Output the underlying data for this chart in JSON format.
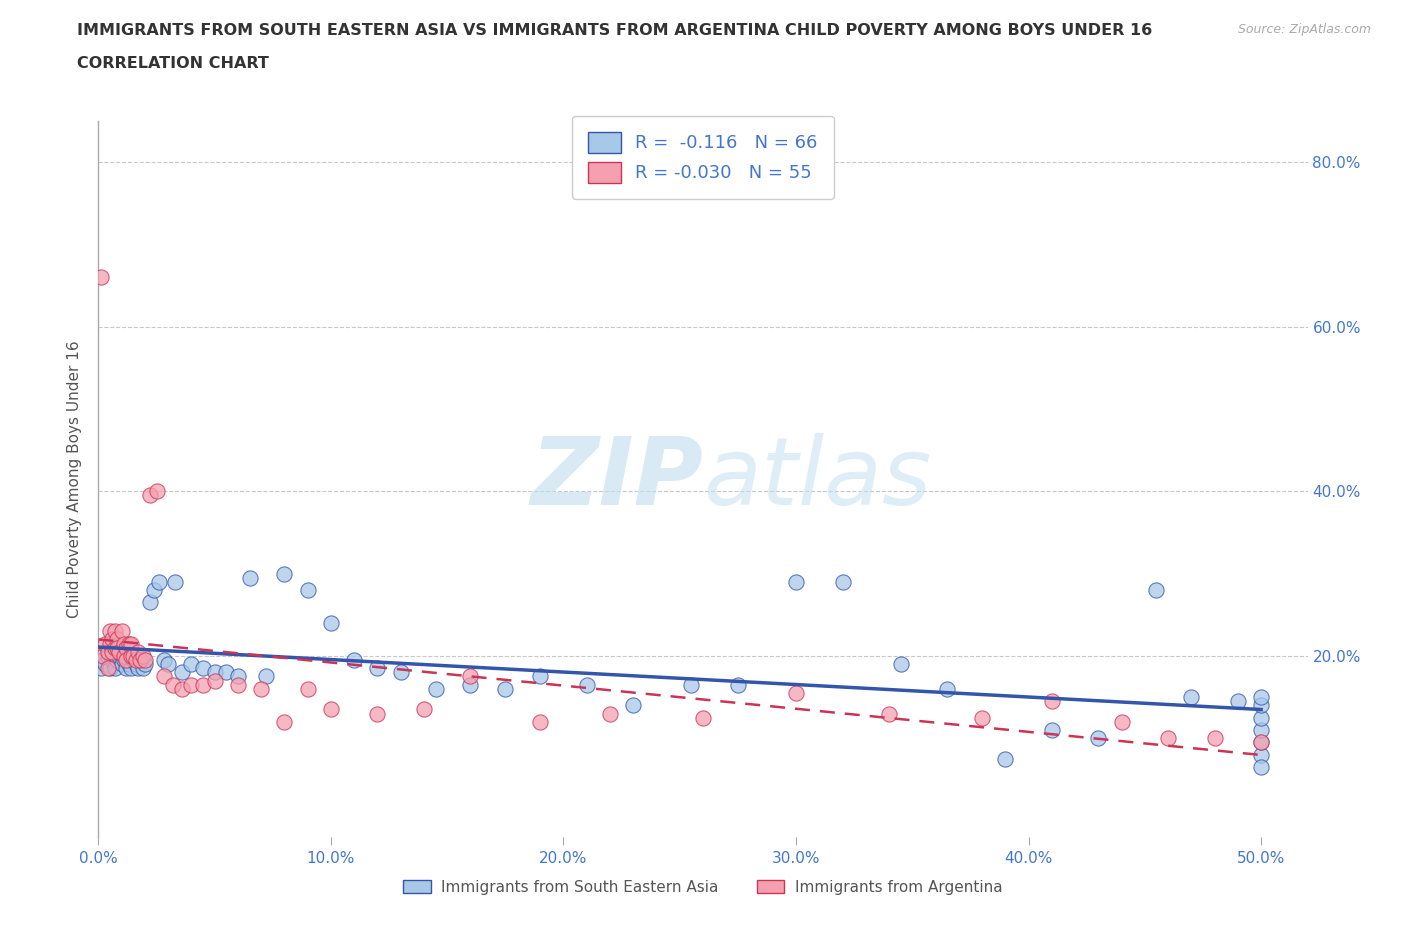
{
  "title_line1": "IMMIGRANTS FROM SOUTH EASTERN ASIA VS IMMIGRANTS FROM ARGENTINA CHILD POVERTY AMONG BOYS UNDER 16",
  "title_line2": "CORRELATION CHART",
  "source": "Source: ZipAtlas.com",
  "ylabel": "Child Poverty Among Boys Under 16",
  "legend_label1": "Immigrants from South Eastern Asia",
  "legend_label2": "Immigrants from Argentina",
  "R1": -0.116,
  "N1": 66,
  "R2": -0.03,
  "N2": 55,
  "color1": "#a8c8e8",
  "color2": "#f4a0b0",
  "line_color1": "#3355aa",
  "line_color2": "#cc3355",
  "bg_color": "#ffffff",
  "grid_color": "#c8c8c8",
  "axis_label_color": "#4477cc",
  "xlim": [
    0.0,
    0.52
  ],
  "ylim": [
    -0.02,
    0.85
  ],
  "xticks": [
    0.0,
    0.1,
    0.2,
    0.3,
    0.4,
    0.5
  ],
  "yticks": [
    0.0,
    0.2,
    0.4,
    0.6,
    0.8
  ],
  "xtick_labels": [
    "0.0%",
    "10.0%",
    "20.0%",
    "30.0%",
    "40.0%",
    "50.0%"
  ],
  "ytick_labels_right": [
    "",
    "20.0%",
    "40.0%",
    "60.0%",
    "80.0%"
  ],
  "scatter1_x": [
    0.001,
    0.001,
    0.002,
    0.003,
    0.004,
    0.005,
    0.006,
    0.007,
    0.008,
    0.009,
    0.01,
    0.011,
    0.012,
    0.013,
    0.014,
    0.015,
    0.016,
    0.017,
    0.018,
    0.019,
    0.02,
    0.022,
    0.024,
    0.026,
    0.028,
    0.03,
    0.033,
    0.036,
    0.04,
    0.045,
    0.05,
    0.055,
    0.06,
    0.065,
    0.072,
    0.08,
    0.09,
    0.1,
    0.11,
    0.12,
    0.13,
    0.145,
    0.16,
    0.175,
    0.19,
    0.21,
    0.23,
    0.255,
    0.275,
    0.3,
    0.32,
    0.345,
    0.365,
    0.39,
    0.41,
    0.43,
    0.455,
    0.47,
    0.49,
    0.5,
    0.5,
    0.5,
    0.5,
    0.5,
    0.5,
    0.5
  ],
  "scatter1_y": [
    0.195,
    0.185,
    0.195,
    0.19,
    0.2,
    0.185,
    0.195,
    0.185,
    0.195,
    0.2,
    0.19,
    0.195,
    0.185,
    0.19,
    0.185,
    0.195,
    0.19,
    0.185,
    0.195,
    0.185,
    0.19,
    0.265,
    0.28,
    0.29,
    0.195,
    0.19,
    0.29,
    0.18,
    0.19,
    0.185,
    0.18,
    0.18,
    0.175,
    0.295,
    0.175,
    0.3,
    0.28,
    0.24,
    0.195,
    0.185,
    0.18,
    0.16,
    0.165,
    0.16,
    0.175,
    0.165,
    0.14,
    0.165,
    0.165,
    0.29,
    0.29,
    0.19,
    0.16,
    0.075,
    0.11,
    0.1,
    0.28,
    0.15,
    0.145,
    0.08,
    0.095,
    0.11,
    0.125,
    0.14,
    0.15,
    0.065
  ],
  "scatter2_x": [
    0.001,
    0.002,
    0.003,
    0.004,
    0.004,
    0.005,
    0.005,
    0.006,
    0.006,
    0.007,
    0.007,
    0.008,
    0.008,
    0.009,
    0.01,
    0.011,
    0.011,
    0.012,
    0.012,
    0.013,
    0.014,
    0.014,
    0.015,
    0.016,
    0.017,
    0.018,
    0.019,
    0.02,
    0.022,
    0.025,
    0.028,
    0.032,
    0.036,
    0.04,
    0.045,
    0.05,
    0.06,
    0.07,
    0.08,
    0.09,
    0.1,
    0.12,
    0.14,
    0.16,
    0.19,
    0.22,
    0.26,
    0.3,
    0.34,
    0.38,
    0.41,
    0.44,
    0.46,
    0.48,
    0.5
  ],
  "scatter2_y": [
    0.66,
    0.2,
    0.215,
    0.205,
    0.185,
    0.23,
    0.215,
    0.22,
    0.205,
    0.23,
    0.21,
    0.22,
    0.21,
    0.205,
    0.23,
    0.215,
    0.2,
    0.21,
    0.195,
    0.215,
    0.215,
    0.2,
    0.2,
    0.195,
    0.205,
    0.195,
    0.2,
    0.195,
    0.395,
    0.4,
    0.175,
    0.165,
    0.16,
    0.165,
    0.165,
    0.17,
    0.165,
    0.16,
    0.12,
    0.16,
    0.135,
    0.13,
    0.135,
    0.175,
    0.12,
    0.13,
    0.125,
    0.155,
    0.13,
    0.125,
    0.145,
    0.12,
    0.1,
    0.1,
    0.095
  ],
  "watermark_part1": "ZIP",
  "watermark_part2": "atlas"
}
